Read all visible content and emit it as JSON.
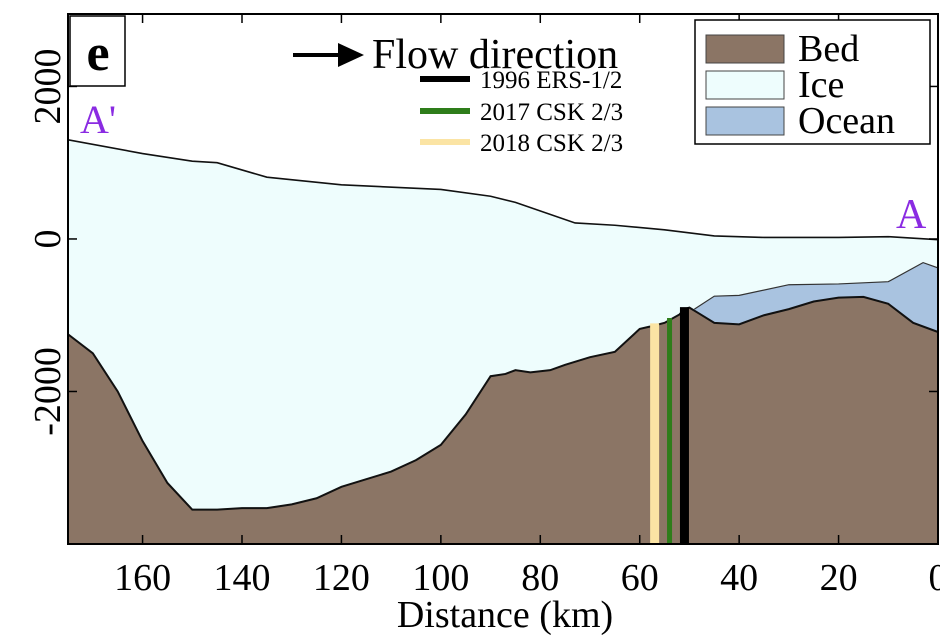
{
  "chart_data": {
    "type": "area",
    "panel_label": "e",
    "xlabel": "Distance (km)",
    "ylabel": "",
    "xlim": [
      175,
      0
    ],
    "ylim": [
      -4000,
      2950
    ],
    "x_reversed": true,
    "grid": false,
    "x_ticks": [
      160,
      140,
      120,
      100,
      80,
      60,
      40,
      20,
      0
    ],
    "y_ticks": [
      -2000,
      0,
      2000
    ],
    "colors": {
      "bed": "#8b7565",
      "ice": "#eefdfd",
      "ocean": "#a9c3e0",
      "ers_line": "#000000",
      "csk2017_line": "#2e7d1a",
      "csk2018_line": "#fbe4a4",
      "point_label": "#8a2be2"
    },
    "endpoint_labels": {
      "left": "A'",
      "right": "A"
    },
    "flow_label": "Flow direction",
    "legend_lines": [
      {
        "label": "1996 ERS-1/2",
        "color": "#000000",
        "x": 51
      },
      {
        "label": "2017 CSK 2/3",
        "color": "#2e7d1a",
        "x": 54
      },
      {
        "label": "2018 CSK 2/3",
        "color": "#fbe4a4",
        "x": 57
      }
    ],
    "legend_patches": [
      {
        "label": "Bed",
        "color": "#8b7565"
      },
      {
        "label": "Ice",
        "color": "#eefdfd"
      },
      {
        "label": "Ocean",
        "color": "#a9c3e0"
      }
    ],
    "series": [
      {
        "name": "Ice surface",
        "x": [
          175,
          160,
          150,
          145,
          135,
          120,
          100,
          90,
          85,
          73,
          65,
          55,
          45,
          35,
          20,
          10,
          0
        ],
        "y": [
          1300,
          1120,
          1020,
          1000,
          810,
          710,
          650,
          560,
          480,
          210,
          180,
          120,
          40,
          20,
          20,
          30,
          -10
        ]
      },
      {
        "name": "Ice base",
        "x": [
          49,
          45,
          40,
          30,
          20,
          10,
          3,
          0
        ],
        "y": [
          -920,
          -750,
          -740,
          -600,
          -590,
          -560,
          -310,
          -380
        ]
      },
      {
        "name": "Bed",
        "x": [
          175,
          170,
          165,
          160,
          155,
          150,
          145,
          140,
          135,
          130,
          125,
          120,
          115,
          110,
          105,
          100,
          95,
          90,
          87,
          85,
          82,
          78,
          75,
          70,
          65,
          60,
          58,
          55,
          52,
          51,
          50,
          48,
          45,
          40,
          35,
          30,
          25,
          20,
          15,
          10,
          5,
          0
        ],
        "y": [
          -1250,
          -1500,
          -2000,
          -2650,
          -3200,
          -3550,
          -3550,
          -3530,
          -3530,
          -3480,
          -3400,
          -3250,
          -3150,
          -3050,
          -2900,
          -2700,
          -2300,
          -1800,
          -1770,
          -1720,
          -1750,
          -1720,
          -1650,
          -1550,
          -1480,
          -1180,
          -1150,
          -1100,
          -990,
          -920,
          -900,
          -980,
          -1100,
          -1120,
          -1000,
          -920,
          -820,
          -770,
          -760,
          -850,
          -1100,
          -1220
        ]
      }
    ]
  }
}
